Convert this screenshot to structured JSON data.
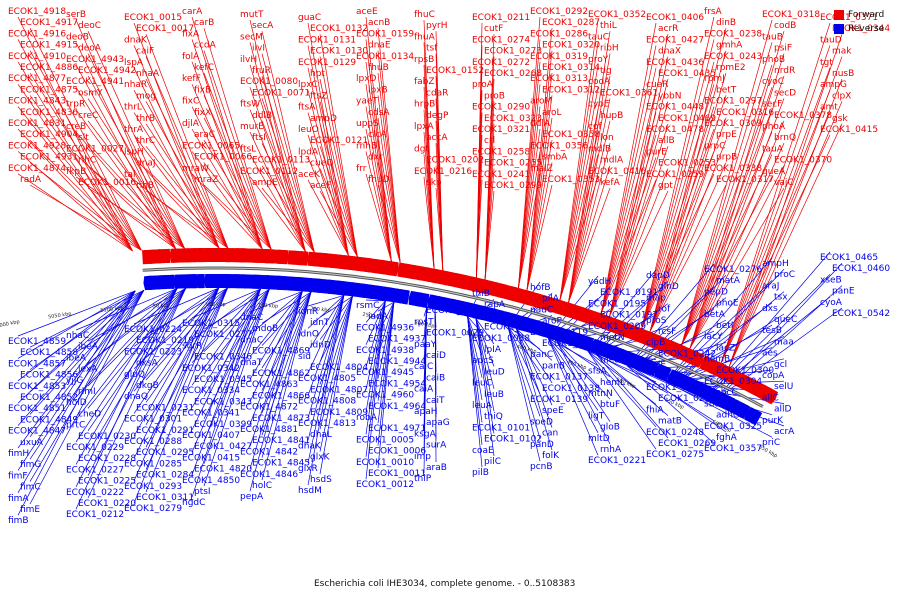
{
  "legend": [
    {
      "label": "Forward",
      "color": "#ee0000"
    },
    {
      "label": "Reverse",
      "color": "#0000ee"
    }
  ],
  "caption": "Escherichia coli IHE3034, complete genome. - 0..5108383",
  "ticks": [
    "4950 kbp",
    "5000 kbp",
    "5050 kbp",
    "5100 kbp",
    "50 kbp",
    "100 kbp",
    "150 kbp",
    "200 kbp",
    "250 kbp",
    "300 kbp",
    "350 kbp",
    "400 kbp",
    "450 kbp",
    "500 kbp",
    "550 kbp",
    "600 kbp",
    "650 kbp"
  ],
  "forward_labels": [
    "ECOK1_4918",
    "ECOK1_4917",
    "ECOK1_4916",
    "ECOK1_4915",
    "ECOK1_4910",
    "ECOK1_4886",
    "ECOK1_4877",
    "ECOK1_4875",
    "ECOK1_4843",
    "ECOK1_4836",
    "ECOK1_4831",
    "ECOK1_4904",
    "ECOK1_4928",
    "ECOK1_4931",
    "ECOK1_4874",
    "radA",
    "serB",
    "deoC",
    "deoB",
    "deoA",
    "ECOK1_4943",
    "ECOK1_4942",
    "ECOK1_4941",
    "osmY",
    "trpR",
    "creC",
    "creB",
    "slt",
    "ECOK1_0027",
    "rihC",
    "fkpB",
    "ECOK1_0016",
    "ECOK1_0015",
    "ECOK1_0017",
    "dnaK",
    "caiF",
    "lspA",
    "nhaA",
    "nhaR",
    "mog",
    "thrL",
    "thrB",
    "thrA",
    "thrC",
    "lspH",
    "dnaJ",
    "tal",
    "rihB",
    "carA",
    "carB",
    "fixA",
    "ccdA",
    "folA",
    "kefC",
    "kefF",
    "fixB",
    "fixC",
    "fixX",
    "djlA",
    "araC",
    "ECOK1_0065",
    "ECOK1_0066",
    "mraW",
    "mraZ",
    "mutT",
    "secA",
    "secM",
    "ilvI",
    "ilvH",
    "fruR",
    "ECOK1_0080",
    "ECOK1_0071",
    "ftsW",
    "ddlB",
    "murE",
    "ftsI",
    "ftsL",
    "ECOK1_0113",
    "ECOK1_0112",
    "ampE",
    "guaC",
    "ECOK1_0132",
    "ECOK1_0131",
    "ECOK1_0130",
    "ECOK1_0129",
    "hpt",
    "lpxC",
    "ftsZ",
    "ftsA",
    "ampD",
    "leuO",
    "ECOK1_0121",
    "lpdA",
    "cueO",
    "aceK",
    "aceF",
    "aceE",
    "acnB",
    "ECOK1_0159",
    "dnaE",
    "ECOK1_0134",
    "fhuB",
    "lpxD",
    "lpxB",
    "yaeT",
    "cdsA",
    "uppS",
    "clcA",
    "rnhB",
    "dxr",
    "frr",
    "fhuD",
    "fhuC",
    "pyrH",
    "fhuA",
    "tsf",
    "rpsB",
    "ECOK1_0152",
    "fabZ",
    "cdaR",
    "hrpB",
    "degP",
    "lpxA",
    "accA",
    "dgt",
    "ECOK1_0202",
    "ECOK1_0216",
    "skp",
    "ECOK1_0211",
    "cutF",
    "ECOK1_0274",
    "ECOK1_0273",
    "ECOK1_0272",
    "ECOK1_0268",
    "proA",
    "proB",
    "ECOK1_0290",
    "ECOK1_0323",
    "ECOK1_0321",
    "crl",
    "ECOK1_0258",
    "ECOK1_0255",
    "ECOK1_0241",
    "ECOK1_0299",
    "ECOK1_0292",
    "ECOK1_0287",
    "ECOK1_0286",
    "ECOK1_0320",
    "ECOK1_0319",
    "ECOK1_0314",
    "ECOK1_0313",
    "ECOK1_0312",
    "aroM",
    "aroL",
    "ddlA",
    "ECOK1_0358",
    "ECOK1_0356",
    "smbA",
    "malZ",
    "ECOK1_0353",
    "ECOK1_0352",
    "thiL",
    "tauC",
    "ribH",
    "proY",
    "tig",
    "codA",
    "ECOK1_0361",
    "cyoE",
    "hupB",
    "cof",
    "lon",
    "mdlB",
    "mdlA",
    "ECOK1_0416",
    "kefA",
    "ECOK1_0406",
    "acrR",
    "ECOK1_0427",
    "dnaX",
    "ECOK1_0436",
    "ECOK1_0435",
    "cueR",
    "ybbN",
    "ECOK1_0448",
    "ECOK1_0469",
    "ECOK1_0478",
    "allB",
    "purE",
    "ECOK1_0253",
    "ECOK1_0259",
    "gpt",
    "frsA",
    "dinB",
    "ECOK1_0238",
    "gmhA",
    "ECOK1_0243",
    "rpmE2",
    "rpmJ",
    "betT",
    "ECOK1_0297",
    "ECOK1_0316",
    "ECOK1_0309",
    "prpE",
    "prpC",
    "prpB",
    "ECOK1_0338",
    "ECOK1_0317",
    "ECOK1_0318",
    "codB",
    "tauB",
    "psiF",
    "phoB",
    "nrdR",
    "cyoC",
    "secD",
    "secF",
    "ECOK1_0378",
    "phoA",
    "brnQ",
    "tauA",
    "ECOK1_0370",
    "queA",
    "vajC",
    "ECOK1_0371",
    "ECOK1_0344",
    "tauD",
    "mak",
    "tgt",
    "nusB",
    "ampG",
    "clpX",
    "amt",
    "gsk",
    "ECOK1_0415"
  ],
  "reverse_labels": [
    "ECOK1_4859",
    "ECOK1_4858",
    "ECOK1_4857",
    "ECOK1_4856",
    "ECOK1_4853",
    "ECOK1_4852",
    "ECOK1_4851",
    "ECOK1_4849",
    "ECOK1_4847",
    "uxuA",
    "fimH",
    "fimG",
    "fimF",
    "fimC",
    "fimA",
    "fimE",
    "fimB",
    "nhaC",
    "ibeA",
    "ibeA",
    "lexA",
    "yjjG",
    "rlmI",
    "holD",
    "cheD",
    "prtC",
    "ECOK1_0230",
    "ECOK1_0229",
    "ECOK1_0228",
    "ECOK1_0227",
    "ECOK1_0225",
    "ECOK1_0222",
    "ECOK1_0220",
    "ECOK1_0212",
    "ECOK1_0224",
    "ECOK1_0219",
    "ECOK1_0223",
    "dksA",
    "gluQ",
    "dkgB",
    "dnaQ",
    "ECOK1_0231",
    "ECOK1_0301",
    "ECOK1_0291",
    "ECOK1_0288",
    "ECOK1_0295",
    "ECOK1_0285",
    "ECOK1_0284",
    "ECOK1_0293",
    "ECOK1_0311",
    "ECOK1_0279",
    "ECOK1_0315",
    "ECOK1_0277",
    "sgrR",
    "ECOK1_0346",
    "ECOK1_0342",
    "ECOK1_0345",
    "ECOK1_0334",
    "ECOK1_0343",
    "ECOK1_0341",
    "ECOK1_0399",
    "ECOK1_0407",
    "ECOK1_0427",
    "ECOK1_0415",
    "ECOK1_4820",
    "ECOK1_4850",
    "ptsI",
    "hgdC",
    "dnaC",
    "mdoB",
    "dnaC",
    "ECOK1_4869",
    "dnaT",
    "ECOK1_4862",
    "ECOK1_4863",
    "ECOK1_4866",
    "ECOK1_4872",
    "ECOK1_4873",
    "ECOK1_4881",
    "ECOK1_4841",
    "ECOK1_4842",
    "ECOK1_4845",
    "ECOK1_4846",
    "holC",
    "pepA",
    "idnR",
    "idnT",
    "idnO",
    "idnD",
    "sid",
    "ECOK1_4804",
    "ECOK1_4805",
    "ECOK1_4807",
    "ECOK1_4808",
    "ECOK1_4809",
    "ECOK1_4813",
    "dhaL",
    "dhaK",
    "glxK",
    "glxR",
    "hsdS",
    "hsdM",
    "rsmC",
    "iadA",
    "ECOK1_4936",
    "ECOK1_4937",
    "ECOK1_4938",
    "ECOK1_4944",
    "ECOK1_4945",
    "ECOK1_4954",
    "ECOK1_4960",
    "ECOK1_4964",
    "robA",
    "ECOK1_4971",
    "ECOK1_0005",
    "ECOK1_0006",
    "ECOK1_0010",
    "ECOK1_0011",
    "ECOK1_0012",
    "pdxA",
    "ECOK1_0057",
    "rpsT",
    "ECOK1_0029",
    "paaY",
    "caiD",
    "caiC",
    "caiB",
    "caiA",
    "caiT",
    "apaH",
    "apaG",
    "ksgA",
    "surA",
    "imp",
    "araB",
    "thiP",
    "thiB",
    "rapA",
    "araD",
    "ECOK1_0036",
    "ECOK1_0038",
    "lpIA",
    "apcS",
    "leuD",
    "leuC",
    "leuB",
    "leuA",
    "thiQ",
    "ECOK1_0101",
    "ECOK1_0102",
    "coaE",
    "pilC",
    "pilB",
    "hofB",
    "pilA",
    "nadC",
    "aroP",
    "ECOK1_0119",
    "ECOK1_0124",
    "panC",
    "panB",
    "ECOK1_0137",
    "ECOK1_0138",
    "ECOK1_0139",
    "speE",
    "speD",
    "can",
    "panD",
    "folK",
    "pcnB",
    "yadH",
    "ECOK1_0191",
    "ECOK1_0195",
    "ECOK1_0197",
    "ECOK1_0209",
    "metN",
    "metI",
    "metQ",
    "sfsA",
    "hemL",
    "mtnN",
    "btuF",
    "ligT",
    "gloB",
    "mltD",
    "rnhA",
    "ECOK1_0221",
    "dapD",
    "glnD",
    "map",
    "rof",
    "proS",
    "rcsF",
    "clpB",
    "ECOK1_0242",
    "fadE",
    "hbp",
    "ECOK1_0246",
    "ECOK1_0251",
    "fhiA",
    "matB",
    "ECOK1_0248",
    "ECOK1_0269",
    "ECOK1_0275",
    "ECOK1_0276",
    "matA",
    "pepD",
    "phoE",
    "betA",
    "betI",
    "lacY",
    "lacZ",
    "hemB",
    "ECOK1_0300",
    "ECOK1_0304",
    "sbcC",
    "sbcD",
    "adhC",
    "ECOK1_0325",
    "fghA",
    "ECOK1_0357",
    "ampH",
    "proC",
    "araJ",
    "tsx",
    "dxs",
    "queC",
    "tesB",
    "maa",
    "aes",
    "gcl",
    "copA",
    "selU",
    "allC",
    "allD",
    "purK",
    "acrA",
    "priC",
    "ECOK1_0465",
    "ECOK1_0460",
    "xseB",
    "panE",
    "cyoA",
    "ECOK1_0542"
  ]
}
